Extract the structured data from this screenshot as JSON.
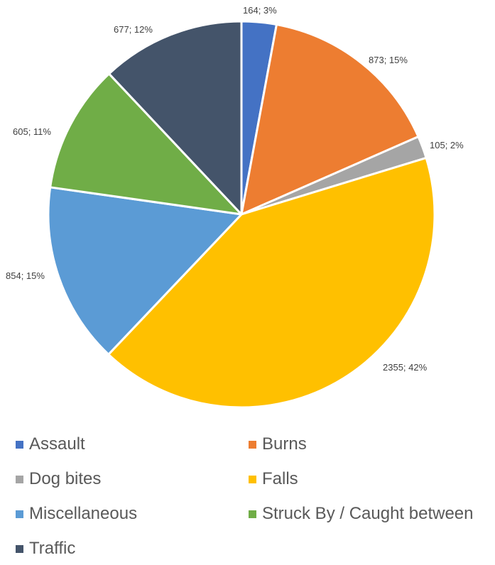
{
  "chart_data": {
    "type": "pie",
    "title": "",
    "slices": [
      {
        "label": "Assault",
        "value": 164,
        "percent": "3%",
        "color": "#4472C4"
      },
      {
        "label": "Burns",
        "value": 873,
        "percent": "15%",
        "color": "#ED7D31"
      },
      {
        "label": "Dog bites",
        "value": 105,
        "percent": "2%",
        "color": "#A5A5A5"
      },
      {
        "label": "Falls",
        "value": 2355,
        "percent": "42%",
        "color": "#FFC000"
      },
      {
        "label": "Miscellaneous",
        "value": 854,
        "percent": "15%",
        "color": "#5B9BD5"
      },
      {
        "label": "Struck By / Caught between",
        "value": 605,
        "percent": "11%",
        "color": "#70AD47"
      },
      {
        "label": "Traffic",
        "value": 677,
        "percent": "12%",
        "color": "#44546A"
      }
    ],
    "legend_position": "bottom"
  }
}
